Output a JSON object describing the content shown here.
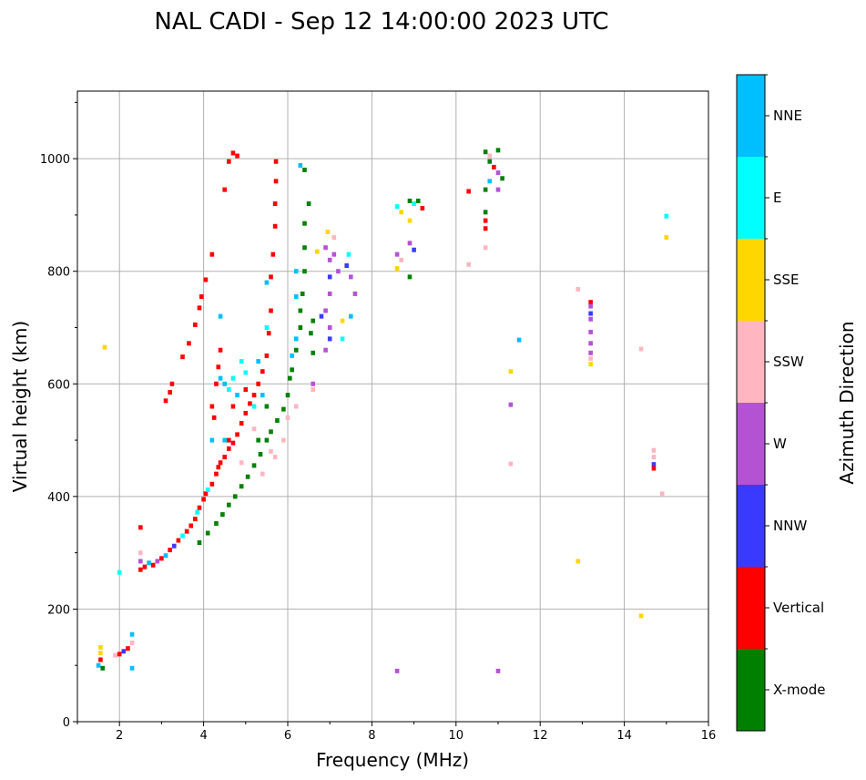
{
  "chart_data": {
    "type": "scatter",
    "title": "NAL CADI - Sep 12 14:00:00 2023 UTC",
    "xlabel": "Frequency (MHz)",
    "ylabel": "Virtual height (km)",
    "xlim": [
      1,
      16
    ],
    "ylim": [
      0,
      1120
    ],
    "xticks": [
      2,
      4,
      6,
      8,
      10,
      12,
      14,
      16
    ],
    "yticks": [
      0,
      200,
      400,
      600,
      800,
      1000
    ],
    "grid": true,
    "colorbar": {
      "label": "Azimuth Direction",
      "categories": [
        "X-mode",
        "Vertical",
        "NNW",
        "W",
        "SSW",
        "SSE",
        "E",
        "NNE"
      ],
      "colors": [
        "#008000",
        "#ff0000",
        "#3a3aff",
        "#b452d4",
        "#ffb6c1",
        "#ffd700",
        "#00ffff",
        "#00bfff"
      ]
    },
    "point_format": [
      "frequency_mhz",
      "virtual_height_km",
      "category_index"
    ],
    "points": [
      [
        1.5,
        100,
        7
      ],
      [
        1.55,
        110,
        1
      ],
      [
        1.55,
        122,
        5
      ],
      [
        1.6,
        95,
        0
      ],
      [
        1.55,
        132,
        5
      ],
      [
        1.9,
        118,
        4
      ],
      [
        2.0,
        120,
        1
      ],
      [
        2.1,
        125,
        2
      ],
      [
        2.2,
        130,
        1
      ],
      [
        2.3,
        140,
        4
      ],
      [
        2.3,
        155,
        7
      ],
      [
        2.3,
        95,
        7
      ],
      [
        1.65,
        665,
        5
      ],
      [
        2.0,
        265,
        6
      ],
      [
        2.5,
        270,
        1
      ],
      [
        2.5,
        285,
        3
      ],
      [
        2.5,
        300,
        4
      ],
      [
        2.5,
        345,
        1
      ],
      [
        2.6,
        275,
        1
      ],
      [
        2.7,
        282,
        7
      ],
      [
        2.8,
        278,
        1
      ],
      [
        2.9,
        285,
        3
      ],
      [
        3.0,
        290,
        1
      ],
      [
        3.1,
        295,
        7
      ],
      [
        3.2,
        305,
        1
      ],
      [
        3.3,
        312,
        2
      ],
      [
        3.4,
        322,
        1
      ],
      [
        3.5,
        330,
        6
      ],
      [
        3.6,
        338,
        1
      ],
      [
        3.7,
        348,
        1
      ],
      [
        3.8,
        360,
        1
      ],
      [
        3.85,
        372,
        6
      ],
      [
        3.9,
        380,
        1
      ],
      [
        4.0,
        395,
        1
      ],
      [
        4.05,
        405,
        1
      ],
      [
        4.1,
        412,
        6
      ],
      [
        4.2,
        422,
        1
      ],
      [
        4.3,
        440,
        1
      ],
      [
        4.35,
        452,
        1
      ],
      [
        4.4,
        460,
        1
      ],
      [
        4.5,
        470,
        1
      ],
      [
        4.6,
        485,
        1
      ],
      [
        4.7,
        495,
        1
      ],
      [
        4.8,
        510,
        1
      ],
      [
        4.9,
        530,
        1
      ],
      [
        5.0,
        548,
        1
      ],
      [
        5.1,
        565,
        1
      ],
      [
        5.2,
        580,
        1
      ],
      [
        5.3,
        600,
        1
      ],
      [
        5.4,
        622,
        1
      ],
      [
        5.5,
        650,
        1
      ],
      [
        5.55,
        690,
        1
      ],
      [
        5.6,
        730,
        1
      ],
      [
        5.6,
        790,
        1
      ],
      [
        5.65,
        830,
        1
      ],
      [
        5.7,
        880,
        1
      ],
      [
        5.7,
        920,
        1
      ],
      [
        5.72,
        960,
        1
      ],
      [
        5.72,
        995,
        1
      ],
      [
        3.1,
        570,
        1
      ],
      [
        3.2,
        585,
        1
      ],
      [
        3.25,
        600,
        1
      ],
      [
        3.5,
        648,
        1
      ],
      [
        3.65,
        672,
        1
      ],
      [
        3.8,
        705,
        1
      ],
      [
        3.9,
        735,
        1
      ],
      [
        3.95,
        755,
        1
      ],
      [
        4.05,
        785,
        1
      ],
      [
        4.2,
        830,
        1
      ],
      [
        4.3,
        600,
        1
      ],
      [
        4.35,
        630,
        1
      ],
      [
        4.4,
        660,
        1
      ],
      [
        4.2,
        560,
        1
      ],
      [
        4.25,
        540,
        1
      ],
      [
        4.7,
        1010,
        1
      ],
      [
        4.8,
        1005,
        1
      ],
      [
        4.5,
        945,
        1
      ],
      [
        4.6,
        995,
        1
      ],
      [
        4.6,
        500,
        1
      ],
      [
        4.7,
        560,
        1
      ],
      [
        5.0,
        590,
        1
      ],
      [
        3.9,
        318,
        0
      ],
      [
        4.1,
        335,
        0
      ],
      [
        4.3,
        352,
        0
      ],
      [
        4.45,
        368,
        0
      ],
      [
        4.6,
        385,
        0
      ],
      [
        4.75,
        400,
        0
      ],
      [
        4.9,
        418,
        0
      ],
      [
        5.05,
        435,
        0
      ],
      [
        5.2,
        455,
        0
      ],
      [
        5.35,
        475,
        0
      ],
      [
        5.5,
        500,
        0
      ],
      [
        5.6,
        515,
        0
      ],
      [
        5.75,
        535,
        0
      ],
      [
        5.9,
        555,
        0
      ],
      [
        6.0,
        580,
        0
      ],
      [
        6.05,
        610,
        0
      ],
      [
        6.1,
        625,
        0
      ],
      [
        6.2,
        660,
        0
      ],
      [
        6.3,
        700,
        0
      ],
      [
        6.3,
        730,
        0
      ],
      [
        6.35,
        760,
        0
      ],
      [
        6.4,
        800,
        0
      ],
      [
        6.4,
        842,
        0
      ],
      [
        6.4,
        885,
        0
      ],
      [
        6.5,
        920,
        0
      ],
      [
        6.4,
        980,
        0
      ],
      [
        6.6,
        712,
        0
      ],
      [
        6.6,
        655,
        0
      ],
      [
        6.55,
        690,
        0
      ],
      [
        5.3,
        500,
        0
      ],
      [
        5.5,
        560,
        0
      ],
      [
        4.5,
        500,
        7
      ],
      [
        4.5,
        600,
        7
      ],
      [
        4.8,
        580,
        7
      ],
      [
        5.0,
        620,
        6
      ],
      [
        5.3,
        640,
        7
      ],
      [
        5.4,
        580,
        7
      ],
      [
        5.5,
        700,
        6
      ],
      [
        5.5,
        780,
        7
      ],
      [
        6.1,
        650,
        7
      ],
      [
        6.2,
        680,
        7
      ],
      [
        6.2,
        755,
        7
      ],
      [
        6.2,
        800,
        7
      ],
      [
        6.3,
        988,
        7
      ],
      [
        4.4,
        720,
        7
      ],
      [
        4.2,
        500,
        7
      ],
      [
        4.9,
        640,
        6
      ],
      [
        4.7,
        610,
        6
      ],
      [
        5.2,
        560,
        6
      ],
      [
        4.6,
        590,
        6
      ],
      [
        4.4,
        610,
        7
      ],
      [
        5.6,
        480,
        4
      ],
      [
        5.7,
        470,
        4
      ],
      [
        5.9,
        500,
        4
      ],
      [
        6.0,
        540,
        4
      ],
      [
        6.2,
        560,
        4
      ],
      [
        6.6,
        590,
        4
      ],
      [
        5.2,
        520,
        4
      ],
      [
        4.9,
        460,
        4
      ],
      [
        5.4,
        440,
        4
      ],
      [
        6.9,
        842,
        3
      ],
      [
        7.0,
        820,
        3
      ],
      [
        7.0,
        790,
        2
      ],
      [
        7.0,
        760,
        3
      ],
      [
        6.9,
        730,
        3
      ],
      [
        7.0,
        700,
        3
      ],
      [
        7.0,
        680,
        2
      ],
      [
        6.9,
        660,
        3
      ],
      [
        7.1,
        830,
        3
      ],
      [
        7.2,
        800,
        3
      ],
      [
        7.4,
        810,
        2
      ],
      [
        7.5,
        790,
        3
      ],
      [
        7.6,
        760,
        3
      ],
      [
        7.5,
        720,
        7
      ],
      [
        7.3,
        680,
        6
      ],
      [
        6.6,
        600,
        3
      ],
      [
        6.8,
        720,
        2
      ],
      [
        7.1,
        860,
        4
      ],
      [
        6.95,
        870,
        5
      ],
      [
        6.7,
        835,
        5
      ],
      [
        7.3,
        712,
        5
      ],
      [
        7.45,
        830,
        6
      ],
      [
        8.6,
        915,
        6
      ],
      [
        8.7,
        905,
        5
      ],
      [
        8.6,
        830,
        3
      ],
      [
        8.7,
        820,
        4
      ],
      [
        8.6,
        805,
        5
      ],
      [
        8.9,
        925,
        0
      ],
      [
        9.0,
        920,
        6
      ],
      [
        9.1,
        925,
        0
      ],
      [
        9.2,
        912,
        1
      ],
      [
        8.9,
        890,
        5
      ],
      [
        8.9,
        850,
        3
      ],
      [
        9.0,
        838,
        2
      ],
      [
        8.9,
        790,
        0
      ],
      [
        8.6,
        90,
        3
      ],
      [
        10.3,
        942,
        1
      ],
      [
        10.3,
        812,
        4
      ],
      [
        10.7,
        1012,
        0
      ],
      [
        10.8,
        1005,
        4
      ],
      [
        10.8,
        995,
        0
      ],
      [
        10.9,
        985,
        1
      ],
      [
        10.8,
        960,
        7
      ],
      [
        10.7,
        945,
        0
      ],
      [
        11.0,
        1015,
        0
      ],
      [
        11.0,
        975,
        3
      ],
      [
        11.1,
        965,
        0
      ],
      [
        11.0,
        945,
        3
      ],
      [
        10.7,
        905,
        0
      ],
      [
        10.7,
        890,
        1
      ],
      [
        10.7,
        876,
        1
      ],
      [
        10.7,
        842,
        4
      ],
      [
        11.0,
        90,
        3
      ],
      [
        11.3,
        622,
        5
      ],
      [
        11.5,
        678,
        7
      ],
      [
        11.3,
        563,
        3
      ],
      [
        11.3,
        458,
        4
      ],
      [
        12.9,
        768,
        4
      ],
      [
        13.2,
        745,
        1
      ],
      [
        13.2,
        738,
        3
      ],
      [
        13.2,
        725,
        2
      ],
      [
        13.2,
        715,
        3
      ],
      [
        13.2,
        692,
        3
      ],
      [
        13.2,
        672,
        3
      ],
      [
        13.2,
        655,
        3
      ],
      [
        13.2,
        645,
        4
      ],
      [
        13.2,
        635,
        5
      ],
      [
        12.9,
        285,
        5
      ],
      [
        14.4,
        662,
        4
      ],
      [
        14.4,
        188,
        5
      ],
      [
        14.7,
        482,
        4
      ],
      [
        14.7,
        470,
        4
      ],
      [
        14.7,
        457,
        2
      ],
      [
        14.7,
        450,
        1
      ],
      [
        14.9,
        405,
        4
      ],
      [
        15.0,
        898,
        6
      ],
      [
        15.0,
        860,
        5
      ]
    ]
  }
}
